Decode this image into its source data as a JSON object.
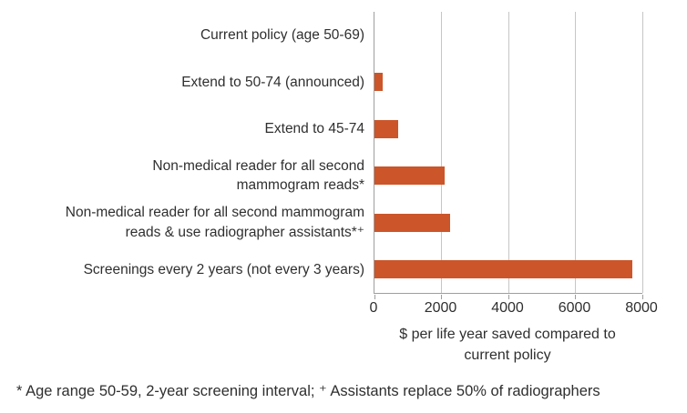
{
  "chart_data": {
    "type": "bar",
    "orientation": "horizontal",
    "categories": [
      "Current policy (age 50-69)",
      "Extend to 50-74 (announced)",
      "Extend to 45-74",
      "Non-medical reader for all second\nmammogram reads*",
      "Non-medical reader for all second mammogram\nreads & use radiographer assistants*⁺",
      "Screenings every 2 years (not every 3 years)"
    ],
    "values": [
      0,
      250,
      700,
      2100,
      2250,
      7700
    ],
    "xlabel": "$ per life year saved compared to\ncurrent policy",
    "xticks": [
      0,
      2000,
      4000,
      6000,
      8000
    ],
    "xlim": [
      0,
      8000
    ],
    "grid": true,
    "legend": false,
    "bar_color": "#cc552a",
    "gridline_color": "#c6c6c6",
    "axis_color": "#9e9e9e",
    "text_color": "#2f2f2f"
  },
  "footnote": "* Age range 50-59, 2-year screening interval; ⁺ Assistants replace 50% of radiographers"
}
